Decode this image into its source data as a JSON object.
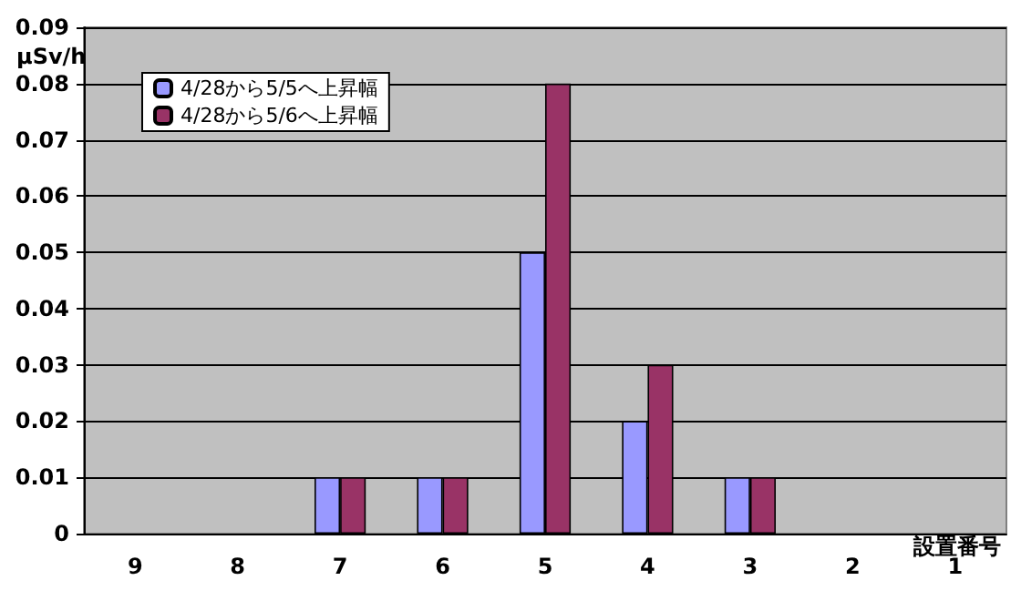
{
  "chart_data": {
    "type": "bar",
    "xlabel": "設置番号",
    "ylabel": "μSv/h",
    "categories": [
      "9",
      "8",
      "7",
      "6",
      "5",
      "4",
      "3",
      "2",
      "1"
    ],
    "series": [
      {
        "name": "4/28から5/5へ上昇幅",
        "color": "#9999ff",
        "values": [
          0,
          0,
          0.01,
          0.01,
          0.05,
          0.02,
          0.01,
          0,
          0
        ]
      },
      {
        "name": "4/28から5/6へ上昇幅",
        "color": "#993366",
        "values": [
          0,
          0,
          0.01,
          0.01,
          0.08,
          0.03,
          0.01,
          0,
          0
        ]
      }
    ],
    "ylim": [
      0,
      0.09
    ],
    "yticks": [
      0,
      0.01,
      0.02,
      0.03,
      0.04,
      0.05,
      0.06,
      0.07,
      0.08,
      0.09
    ],
    "grid": "y",
    "legend": "top left"
  }
}
